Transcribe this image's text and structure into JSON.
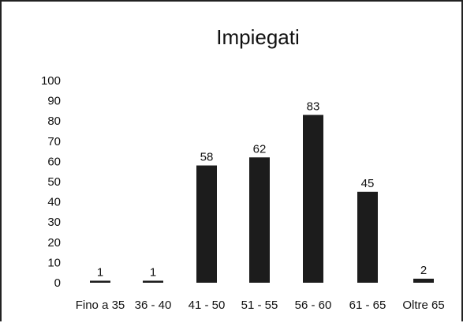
{
  "chart_data": {
    "type": "bar",
    "title": "Impiegati",
    "xlabel": "",
    "ylabel": "",
    "categories": [
      "Fino a 35",
      "36 - 40",
      "41 - 50",
      "51 - 55",
      "56 - 60",
      "61 - 65",
      "Oltre 65"
    ],
    "values": [
      1,
      1,
      58,
      62,
      83,
      45,
      2
    ],
    "ylim": [
      0,
      100
    ],
    "yticks": [
      "0",
      "10",
      "20",
      "30",
      "40",
      "50",
      "60",
      "70",
      "80",
      "90",
      "100"
    ],
    "data_labels": [
      "1",
      "1",
      "58",
      "62",
      "83",
      "45",
      "2"
    ],
    "grid": false,
    "legend": "none",
    "bar_color": "#1c1c1c"
  }
}
